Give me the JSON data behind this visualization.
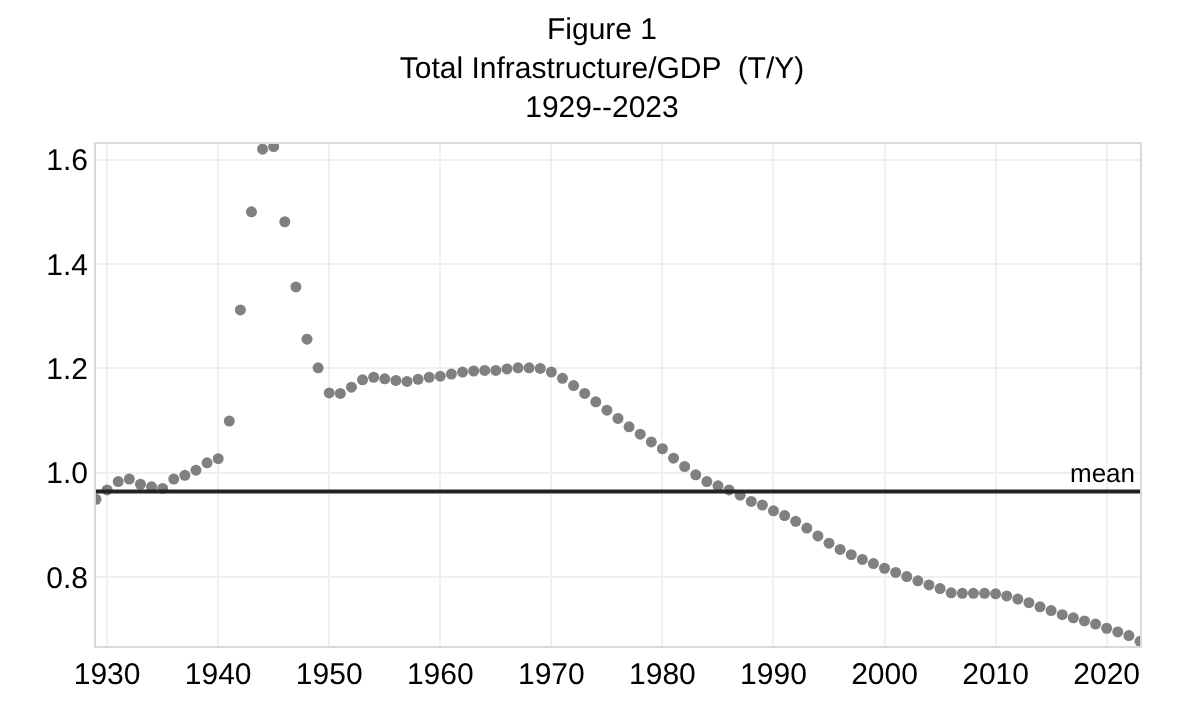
{
  "chart_data": {
    "type": "scatter",
    "title": "Figure 1\nTotal Infrastructure/GDP  (T/Y)\n1929--2023",
    "x": [
      1929,
      1930,
      1931,
      1932,
      1933,
      1934,
      1935,
      1936,
      1937,
      1938,
      1939,
      1940,
      1941,
      1942,
      1943,
      1944,
      1945,
      1946,
      1947,
      1948,
      1949,
      1950,
      1951,
      1952,
      1953,
      1954,
      1955,
      1956,
      1957,
      1958,
      1959,
      1960,
      1961,
      1962,
      1963,
      1964,
      1965,
      1966,
      1967,
      1968,
      1969,
      1970,
      1971,
      1972,
      1973,
      1974,
      1975,
      1976,
      1977,
      1978,
      1979,
      1980,
      1981,
      1982,
      1983,
      1984,
      1985,
      1986,
      1987,
      1988,
      1989,
      1990,
      1991,
      1992,
      1993,
      1994,
      1995,
      1996,
      1997,
      1998,
      1999,
      2000,
      2001,
      2002,
      2003,
      2004,
      2005,
      2006,
      2007,
      2008,
      2009,
      2010,
      2011,
      2012,
      2013,
      2014,
      2015,
      2016,
      2017,
      2018,
      2019,
      2020,
      2021,
      2022,
      2023
    ],
    "series": [
      {
        "color": "#808080",
        "values": [
          0.949,
          0.967,
          0.983,
          0.988,
          0.978,
          0.973,
          0.97,
          0.988,
          0.995,
          1.005,
          1.019,
          1.027,
          1.099,
          1.312,
          1.5,
          1.62,
          1.625,
          1.481,
          1.356,
          1.256,
          1.201,
          1.153,
          1.152,
          1.164,
          1.178,
          1.183,
          1.18,
          1.177,
          1.175,
          1.179,
          1.183,
          1.185,
          1.189,
          1.193,
          1.195,
          1.196,
          1.196,
          1.199,
          1.201,
          1.201,
          1.2,
          1.193,
          1.181,
          1.167,
          1.152,
          1.136,
          1.12,
          1.104,
          1.088,
          1.074,
          1.059,
          1.046,
          1.028,
          1.012,
          0.996,
          0.983,
          0.975,
          0.967,
          0.957,
          0.945,
          0.938,
          0.927,
          0.918,
          0.907,
          0.894,
          0.879,
          0.865,
          0.853,
          0.843,
          0.834,
          0.826,
          0.817,
          0.809,
          0.801,
          0.793,
          0.785,
          0.778,
          0.77,
          0.769,
          0.769,
          0.769,
          0.768,
          0.764,
          0.758,
          0.751,
          0.743,
          0.736,
          0.728,
          0.722,
          0.716,
          0.71,
          0.702,
          0.695,
          0.688,
          0.677
        ]
      }
    ],
    "xlim": [
      1929,
      2023
    ],
    "xticks": [
      1930,
      1940,
      1950,
      1960,
      1970,
      1980,
      1990,
      2000,
      2010,
      2020
    ],
    "ylim": [
      0.668,
      1.63
    ],
    "yticks": [
      {
        "value": 0.8,
        "label": "0.8"
      },
      {
        "value": 1,
        "label": "1.0"
      },
      {
        "value": 1.2,
        "label": "1.2"
      },
      {
        "value": 1.4,
        "label": "1.4"
      },
      {
        "value": 1.6,
        "label": "1.6"
      }
    ],
    "ref_lines": [
      {
        "axis": "y",
        "value": 0.964,
        "label": "mean",
        "color": "#222222"
      }
    ],
    "grid": true,
    "marker": "circle"
  }
}
